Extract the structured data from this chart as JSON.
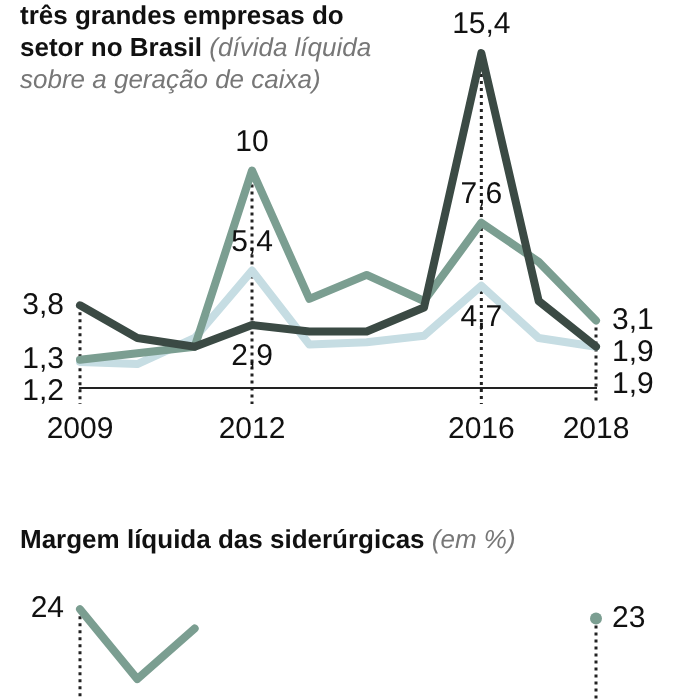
{
  "chart_data": [
    {
      "type": "line",
      "title": "três grandes empresas do setor no Brasil",
      "subtitle": "(dívida líquida sobre a geração de caixa)",
      "x": [
        2009,
        2010,
        2011,
        2012,
        2013,
        2014,
        2015,
        2016,
        2017,
        2018
      ],
      "xlim": [
        2009,
        2018
      ],
      "xticks": [
        2009,
        2012,
        2016,
        2018
      ],
      "tick_labels": "x",
      "grid": false,
      "ref_lines": [
        {
          "axis": "x",
          "value": 2009,
          "line_style": "dotted"
        },
        {
          "axis": "x",
          "value": 2012,
          "line_style": "dotted"
        },
        {
          "axis": "x",
          "value": 2016,
          "line_style": "dotted"
        },
        {
          "axis": "x",
          "value": 2018,
          "line_style": "dotted"
        }
      ],
      "series": [
        {
          "color": "#3b4a44",
          "values": [
            3.8,
            2.3,
            1.9,
            2.9,
            2.6,
            2.6,
            3.7,
            15.4,
            4.0,
            1.9
          ],
          "value_labels": [
            "3,8",
            null,
            null,
            "2,9",
            null,
            null,
            null,
            "15,4",
            null,
            "1,9"
          ]
        },
        {
          "color": "#7b9e91",
          "values": [
            1.3,
            1.6,
            1.9,
            10,
            4.1,
            5.2,
            4.0,
            7.6,
            5.8,
            3.1
          ],
          "value_labels": [
            "1,3",
            null,
            null,
            "10",
            null,
            null,
            null,
            "7,6",
            null,
            "3,1"
          ]
        },
        {
          "color": "#c6dde3",
          "values": [
            1.2,
            1.1,
            2.3,
            5.4,
            2.0,
            2.1,
            2.4,
            4.7,
            2.3,
            1.9
          ],
          "value_labels": [
            "1,2",
            null,
            null,
            "5,4",
            null,
            null,
            null,
            "4,7",
            null,
            "1,9"
          ]
        }
      ]
    },
    {
      "type": "line",
      "title": "Margem líquida das siderúrgicas",
      "subtitle": "(em %)",
      "x": [
        2009,
        2010,
        2011,
        2012,
        2013,
        2014,
        2015,
        2016,
        2017,
        2018
      ],
      "xlim": [
        2009,
        2018
      ],
      "tick_labels": false,
      "grid": false,
      "ref_lines": [
        {
          "axis": "x",
          "value": 2009,
          "line_style": "dotted"
        },
        {
          "axis": "x",
          "value": 2018,
          "line_style": "dotted"
        }
      ],
      "series": [
        {
          "color": "#7b9e91",
          "values": [
            24,
            16.4,
            21.9,
            null,
            null,
            null,
            null,
            null,
            null,
            23
          ],
          "value_labels": [
            "24",
            null,
            null,
            null,
            null,
            null,
            null,
            null,
            null,
            "23"
          ]
        }
      ]
    }
  ]
}
